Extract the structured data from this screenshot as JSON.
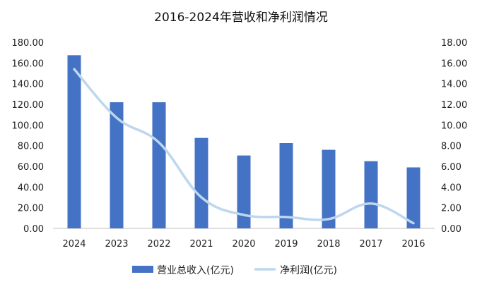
{
  "chart_data": {
    "type": "bar",
    "title": "2016-2024年营收和净利润情况",
    "categories": [
      "2024",
      "2023",
      "2022",
      "2021",
      "2020",
      "2019",
      "2018",
      "2017",
      "2016"
    ],
    "series": [
      {
        "name": "营业总收入(亿元)",
        "type": "bar",
        "axis": "left",
        "color": "#4472C4",
        "values": [
          167.5,
          122.0,
          122.0,
          87.5,
          70.5,
          82.5,
          76.0,
          65.0,
          59.0
        ]
      },
      {
        "name": "净利润(亿元)",
        "type": "line",
        "axis": "right",
        "color": "#BDD7EE",
        "values": [
          15.4,
          10.7,
          8.3,
          3.0,
          1.3,
          1.1,
          0.9,
          2.4,
          0.5
        ]
      }
    ],
    "y_left": {
      "ylim": [
        0,
        180
      ],
      "ticks": [
        "0.00",
        "20.00",
        "40.00",
        "60.00",
        "80.00",
        "100.00",
        "120.00",
        "140.00",
        "160.00",
        "180.00"
      ]
    },
    "y_right": {
      "ylim": [
        0,
        18
      ],
      "ticks": [
        "0.00",
        "2.00",
        "4.00",
        "6.00",
        "8.00",
        "10.00",
        "12.00",
        "14.00",
        "16.00",
        "18.00"
      ]
    },
    "grid": false,
    "legend_position": "bottom"
  }
}
